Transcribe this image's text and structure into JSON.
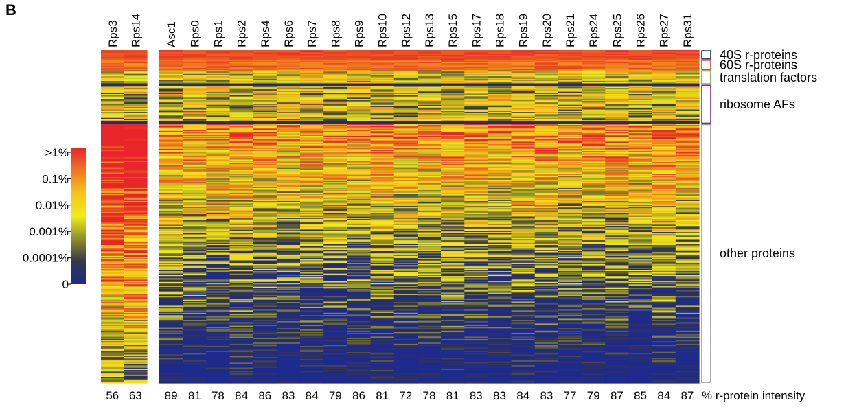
{
  "panel_label": "B",
  "chart_data": {
    "type": "heatmap",
    "left_columns": [
      "Rps3",
      "Rps14"
    ],
    "right_columns": [
      "Asc1",
      "Rps0",
      "Rps1",
      "Rps2",
      "Rps4",
      "Rps6",
      "Rps7",
      "Rps8",
      "Rps9",
      "Rps10",
      "Rps12",
      "Rps13",
      "Rps15",
      "Rps17",
      "Rps18",
      "Rps19",
      "Rps20",
      "Rps21",
      "Rps24",
      "Rps25",
      "Rps26",
      "Rps27",
      "Rps31"
    ],
    "left_intensity": [
      "56",
      "63"
    ],
    "right_intensity": [
      "89",
      "81",
      "78",
      "84",
      "86",
      "83",
      "84",
      "79",
      "86",
      "81",
      "72",
      "78",
      "81",
      "83",
      "83",
      "84",
      "83",
      "77",
      "79",
      "87",
      "85",
      "84",
      "87"
    ],
    "intensity_suffix": "% r-protein intensity",
    "groups": [
      {
        "name": "40S r-proteins",
        "color": "#2b3590"
      },
      {
        "name": "60S r-proteins",
        "color": "#e8432a"
      },
      {
        "name": "translation factors",
        "color": "#5aaa3a"
      },
      {
        "name": "ribosome AFs",
        "color": "#8b2a8b"
      },
      {
        "name": "other proteins",
        "color": "#9a9a9a"
      }
    ],
    "colorbar": {
      "labels": [
        ">1%",
        "0.1%",
        "0.01%",
        "0.001%",
        "0.0001%",
        "0"
      ],
      "colors": [
        "#e8262a",
        "#f07a1e",
        "#f6c51a",
        "#f0ec1a",
        "#8e8e2a",
        "#36364a",
        "#1e2a8c"
      ]
    }
  }
}
